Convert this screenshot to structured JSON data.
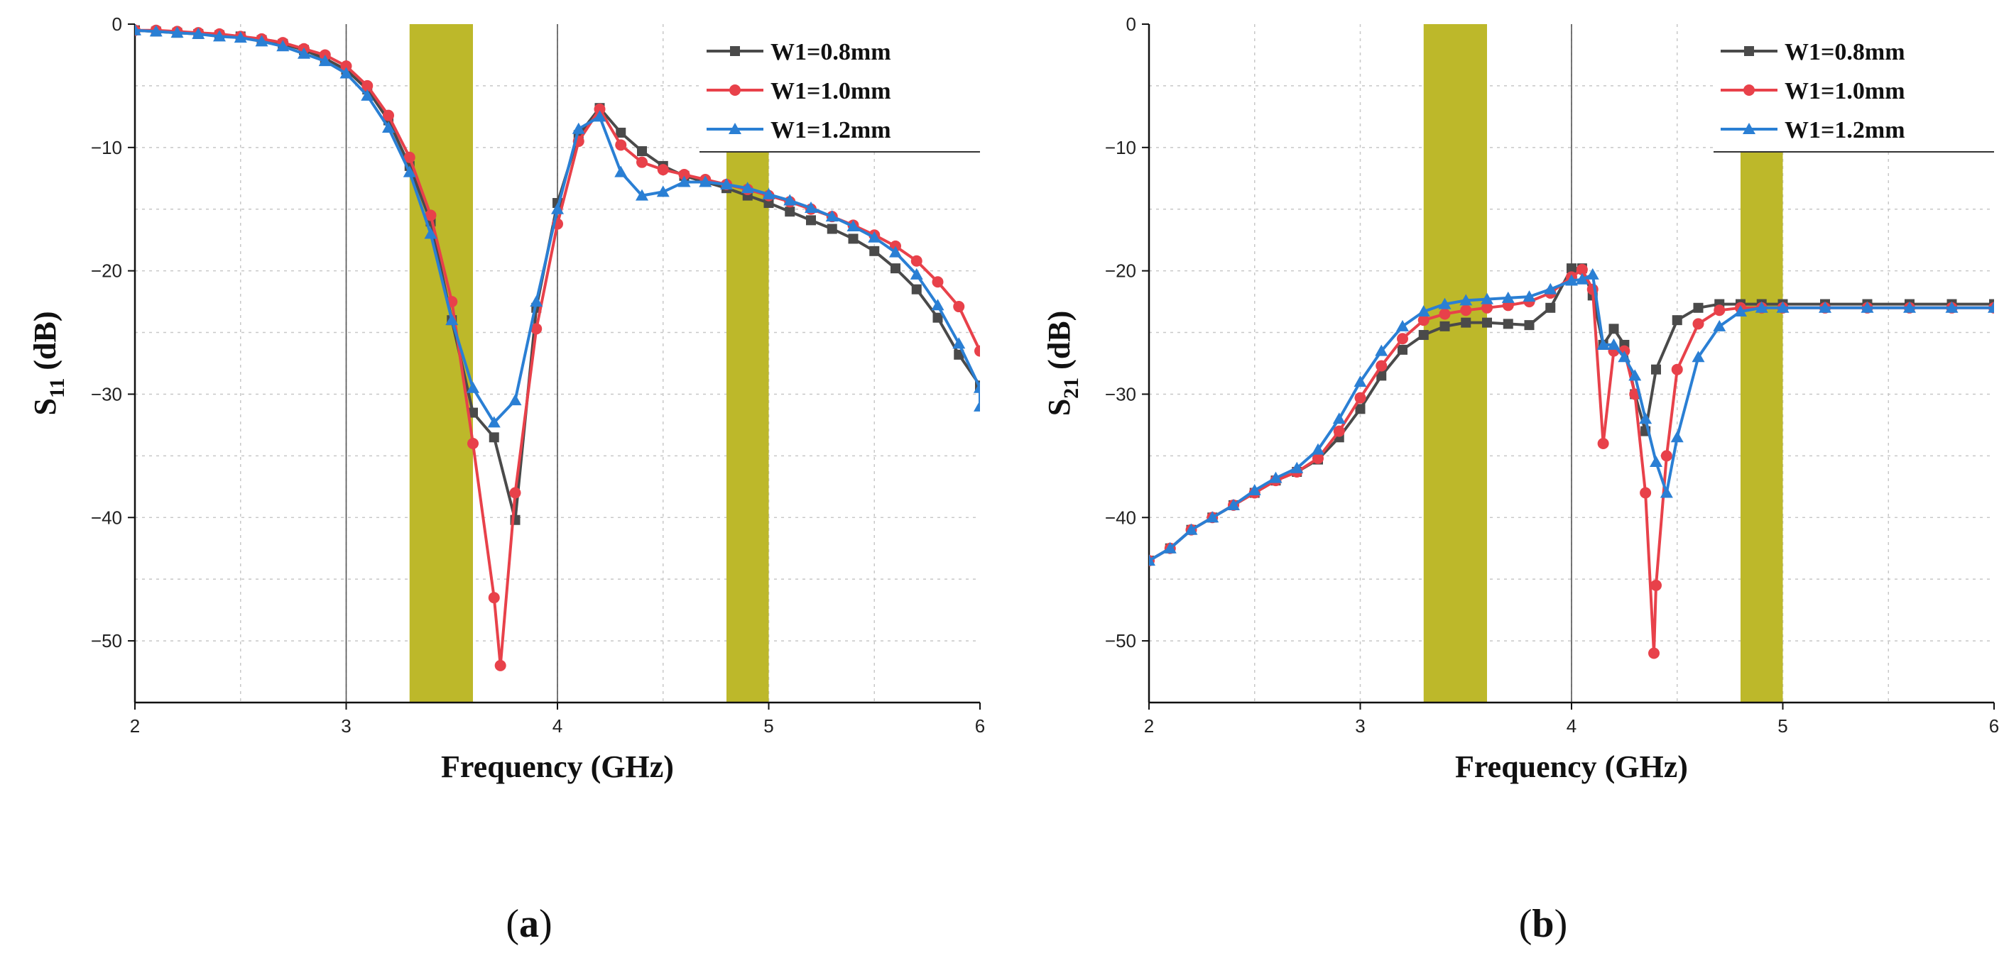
{
  "chart_data": [
    {
      "id": "a",
      "type": "line",
      "caption": "a",
      "xlabel": "Frequency (GHz)",
      "ylabel_main": "S",
      "ylabel_sub": "11",
      "ylabel_suffix": " (dB)",
      "xlim": [
        2,
        6
      ],
      "ylim": [
        -55,
        0
      ],
      "xticks": [
        2,
        3,
        4,
        5,
        6
      ],
      "yticks": [
        0,
        -10,
        -20,
        -30,
        -40,
        -50
      ],
      "ytick_labels": [
        "0",
        "−10",
        "−20",
        "−30",
        "−40",
        "−50"
      ],
      "grid": true,
      "legend_position": "top-right",
      "bands": [
        [
          3.3,
          3.6
        ],
        [
          4.8,
          5.0
        ]
      ],
      "marker_vlines": [
        3.0,
        4.0
      ],
      "band_color": "#bdb82a",
      "series": [
        {
          "name": "W1=0.8mm",
          "color": "#4a4a4a",
          "marker": "square",
          "points": [
            [
              2.0,
              -0.5
            ],
            [
              2.1,
              -0.6
            ],
            [
              2.2,
              -0.7
            ],
            [
              2.3,
              -0.8
            ],
            [
              2.4,
              -0.9
            ],
            [
              2.5,
              -1.0
            ],
            [
              2.6,
              -1.3
            ],
            [
              2.7,
              -1.6
            ],
            [
              2.8,
              -2.1
            ],
            [
              2.9,
              -2.8
            ],
            [
              3.0,
              -3.7
            ],
            [
              3.1,
              -5.3
            ],
            [
              3.2,
              -7.8
            ],
            [
              3.3,
              -11.5
            ],
            [
              3.4,
              -16.0
            ],
            [
              3.5,
              -24.0
            ],
            [
              3.6,
              -31.5
            ],
            [
              3.7,
              -33.5
            ],
            [
              3.8,
              -40.2
            ],
            [
              3.9,
              -23.0
            ],
            [
              4.0,
              -14.5
            ],
            [
              4.1,
              -9.0
            ],
            [
              4.2,
              -6.8
            ],
            [
              4.3,
              -8.8
            ],
            [
              4.4,
              -10.3
            ],
            [
              4.5,
              -11.5
            ],
            [
              4.6,
              -12.3
            ],
            [
              4.7,
              -12.8
            ],
            [
              4.8,
              -13.3
            ],
            [
              4.9,
              -13.9
            ],
            [
              5.0,
              -14.5
            ],
            [
              5.1,
              -15.2
            ],
            [
              5.2,
              -15.9
            ],
            [
              5.3,
              -16.6
            ],
            [
              5.4,
              -17.4
            ],
            [
              5.5,
              -18.4
            ],
            [
              5.6,
              -19.8
            ],
            [
              5.7,
              -21.5
            ],
            [
              5.8,
              -23.8
            ],
            [
              5.9,
              -26.8
            ],
            [
              6.0,
              -29.3
            ]
          ]
        },
        {
          "name": "W1=1.0mm",
          "color": "#e8414a",
          "marker": "circle",
          "points": [
            [
              2.0,
              -0.5
            ],
            [
              2.1,
              -0.5
            ],
            [
              2.2,
              -0.6
            ],
            [
              2.3,
              -0.7
            ],
            [
              2.4,
              -0.8
            ],
            [
              2.5,
              -1.0
            ],
            [
              2.6,
              -1.2
            ],
            [
              2.7,
              -1.5
            ],
            [
              2.8,
              -2.0
            ],
            [
              2.9,
              -2.5
            ],
            [
              3.0,
              -3.4
            ],
            [
              3.1,
              -5.0
            ],
            [
              3.2,
              -7.4
            ],
            [
              3.3,
              -10.8
            ],
            [
              3.4,
              -15.5
            ],
            [
              3.5,
              -22.5
            ],
            [
              3.6,
              -34.0
            ],
            [
              3.7,
              -46.5
            ],
            [
              3.73,
              -52.0
            ],
            [
              3.8,
              -38.0
            ],
            [
              3.9,
              -24.7
            ],
            [
              4.0,
              -16.2
            ],
            [
              4.1,
              -9.5
            ],
            [
              4.2,
              -6.9
            ],
            [
              4.3,
              -9.8
            ],
            [
              4.4,
              -11.2
            ],
            [
              4.5,
              -11.8
            ],
            [
              4.6,
              -12.2
            ],
            [
              4.7,
              -12.6
            ],
            [
              4.8,
              -13.0
            ],
            [
              4.9,
              -13.4
            ],
            [
              5.0,
              -13.9
            ],
            [
              5.1,
              -14.4
            ],
            [
              5.2,
              -15.0
            ],
            [
              5.3,
              -15.6
            ],
            [
              5.4,
              -16.3
            ],
            [
              5.5,
              -17.1
            ],
            [
              5.6,
              -18.0
            ],
            [
              5.7,
              -19.2
            ],
            [
              5.8,
              -20.9
            ],
            [
              5.9,
              -22.9
            ],
            [
              6.0,
              -26.5
            ]
          ]
        },
        {
          "name": "W1=1.2mm",
          "color": "#2a7fd4",
          "marker": "triangle",
          "points": [
            [
              2.0,
              -0.5
            ],
            [
              2.1,
              -0.6
            ],
            [
              2.2,
              -0.7
            ],
            [
              2.3,
              -0.8
            ],
            [
              2.4,
              -1.0
            ],
            [
              2.5,
              -1.1
            ],
            [
              2.6,
              -1.4
            ],
            [
              2.7,
              -1.8
            ],
            [
              2.8,
              -2.4
            ],
            [
              2.9,
              -3.0
            ],
            [
              3.0,
              -4.0
            ],
            [
              3.1,
              -5.8
            ],
            [
              3.2,
              -8.4
            ],
            [
              3.3,
              -12.0
            ],
            [
              3.4,
              -17.0
            ],
            [
              3.5,
              -24.0
            ],
            [
              3.6,
              -29.5
            ],
            [
              3.7,
              -32.3
            ],
            [
              3.8,
              -30.5
            ],
            [
              3.9,
              -22.5
            ],
            [
              4.0,
              -15.0
            ],
            [
              4.1,
              -8.5
            ],
            [
              4.2,
              -7.5
            ],
            [
              4.3,
              -12.0
            ],
            [
              4.4,
              -13.9
            ],
            [
              4.5,
              -13.6
            ],
            [
              4.6,
              -12.8
            ],
            [
              4.7,
              -12.8
            ],
            [
              4.8,
              -13.0
            ],
            [
              4.9,
              -13.3
            ],
            [
              5.0,
              -13.8
            ],
            [
              5.1,
              -14.3
            ],
            [
              5.2,
              -14.9
            ],
            [
              5.3,
              -15.6
            ],
            [
              5.4,
              -16.4
            ],
            [
              5.5,
              -17.3
            ],
            [
              5.6,
              -18.5
            ],
            [
              5.7,
              -20.3
            ],
            [
              5.8,
              -22.8
            ],
            [
              5.9,
              -25.9
            ],
            [
              6.0,
              -29.5
            ],
            [
              6.0,
              -31.0
            ]
          ]
        }
      ]
    },
    {
      "id": "b",
      "type": "line",
      "caption": "b",
      "xlabel": "Frequency (GHz)",
      "ylabel_main": "S",
      "ylabel_sub": "21",
      "ylabel_suffix": " (dB)",
      "xlim": [
        2,
        6
      ],
      "ylim": [
        -55,
        0
      ],
      "xticks": [
        2,
        3,
        4,
        5,
        6
      ],
      "yticks": [
        0,
        -10,
        -20,
        -30,
        -40,
        -50
      ],
      "ytick_labels": [
        "0",
        "−10",
        "−20",
        "−30",
        "−40",
        "−50"
      ],
      "grid": true,
      "legend_position": "top-right",
      "bands": [
        [
          3.3,
          3.6
        ],
        [
          4.8,
          5.0
        ]
      ],
      "marker_vlines": [
        4.0
      ],
      "band_color": "#bdb82a",
      "series": [
        {
          "name": "W1=0.8mm",
          "color": "#4a4a4a",
          "marker": "square",
          "points": [
            [
              2.0,
              -43.5
            ],
            [
              2.1,
              -42.5
            ],
            [
              2.2,
              -41.0
            ],
            [
              2.3,
              -40.0
            ],
            [
              2.4,
              -39.0
            ],
            [
              2.5,
              -38.0
            ],
            [
              2.6,
              -37.0
            ],
            [
              2.7,
              -36.3
            ],
            [
              2.8,
              -35.3
            ],
            [
              2.9,
              -33.5
            ],
            [
              3.0,
              -31.2
            ],
            [
              3.1,
              -28.5
            ],
            [
              3.2,
              -26.4
            ],
            [
              3.3,
              -25.2
            ],
            [
              3.4,
              -24.5
            ],
            [
              3.5,
              -24.2
            ],
            [
              3.6,
              -24.2
            ],
            [
              3.7,
              -24.3
            ],
            [
              3.8,
              -24.4
            ],
            [
              3.9,
              -23.0
            ],
            [
              4.0,
              -19.8
            ],
            [
              4.05,
              -19.8
            ],
            [
              4.1,
              -22.0
            ],
            [
              4.15,
              -26.0
            ],
            [
              4.2,
              -24.7
            ],
            [
              4.25,
              -26.0
            ],
            [
              4.3,
              -30.0
            ],
            [
              4.35,
              -33.0
            ],
            [
              4.4,
              -28.0
            ],
            [
              4.5,
              -24.0
            ],
            [
              4.6,
              -23.0
            ],
            [
              4.7,
              -22.7
            ],
            [
              4.8,
              -22.7
            ],
            [
              4.9,
              -22.7
            ],
            [
              5.0,
              -22.7
            ],
            [
              5.2,
              -22.7
            ],
            [
              5.4,
              -22.7
            ],
            [
              5.6,
              -22.7
            ],
            [
              5.8,
              -22.7
            ],
            [
              6.0,
              -22.7
            ]
          ]
        },
        {
          "name": "W1=1.0mm",
          "color": "#e8414a",
          "marker": "circle",
          "points": [
            [
              2.0,
              -43.5
            ],
            [
              2.1,
              -42.5
            ],
            [
              2.2,
              -41.0
            ],
            [
              2.3,
              -40.0
            ],
            [
              2.4,
              -39.0
            ],
            [
              2.5,
              -38.0
            ],
            [
              2.6,
              -37.0
            ],
            [
              2.7,
              -36.3
            ],
            [
              2.8,
              -35.2
            ],
            [
              2.9,
              -33.0
            ],
            [
              3.0,
              -30.3
            ],
            [
              3.1,
              -27.7
            ],
            [
              3.2,
              -25.5
            ],
            [
              3.3,
              -24.0
            ],
            [
              3.4,
              -23.5
            ],
            [
              3.5,
              -23.2
            ],
            [
              3.6,
              -23.0
            ],
            [
              3.7,
              -22.8
            ],
            [
              3.8,
              -22.5
            ],
            [
              3.9,
              -21.8
            ],
            [
              4.0,
              -20.5
            ],
            [
              4.05,
              -19.9
            ],
            [
              4.1,
              -21.5
            ],
            [
              4.15,
              -34.0
            ],
            [
              4.2,
              -26.5
            ],
            [
              4.25,
              -26.5
            ],
            [
              4.3,
              -30.0
            ],
            [
              4.35,
              -38.0
            ],
            [
              4.39,
              -51.0
            ],
            [
              4.4,
              -45.5
            ],
            [
              4.45,
              -35.0
            ],
            [
              4.5,
              -28.0
            ],
            [
              4.6,
              -24.3
            ],
            [
              4.7,
              -23.2
            ],
            [
              4.8,
              -23.0
            ],
            [
              4.9,
              -23.0
            ],
            [
              5.0,
              -23.0
            ],
            [
              5.2,
              -23.0
            ],
            [
              5.4,
              -23.0
            ],
            [
              5.6,
              -23.0
            ],
            [
              5.8,
              -23.0
            ],
            [
              6.0,
              -23.0
            ]
          ]
        },
        {
          "name": "W1=1.2mm",
          "color": "#2a7fd4",
          "marker": "triangle",
          "points": [
            [
              2.0,
              -43.5
            ],
            [
              2.1,
              -42.5
            ],
            [
              2.2,
              -41.0
            ],
            [
              2.3,
              -40.0
            ],
            [
              2.4,
              -39.0
            ],
            [
              2.5,
              -37.8
            ],
            [
              2.6,
              -36.8
            ],
            [
              2.7,
              -36.0
            ],
            [
              2.8,
              -34.5
            ],
            [
              2.9,
              -32.0
            ],
            [
              3.0,
              -29.0
            ],
            [
              3.1,
              -26.5
            ],
            [
              3.2,
              -24.5
            ],
            [
              3.3,
              -23.3
            ],
            [
              3.4,
              -22.7
            ],
            [
              3.5,
              -22.4
            ],
            [
              3.6,
              -22.3
            ],
            [
              3.7,
              -22.2
            ],
            [
              3.8,
              -22.1
            ],
            [
              3.9,
              -21.5
            ],
            [
              4.0,
              -20.8
            ],
            [
              4.05,
              -20.7
            ],
            [
              4.1,
              -20.3
            ],
            [
              4.15,
              -26.0
            ],
            [
              4.2,
              -26.0
            ],
            [
              4.25,
              -27.0
            ],
            [
              4.3,
              -28.5
            ],
            [
              4.35,
              -32.0
            ],
            [
              4.4,
              -35.5
            ],
            [
              4.45,
              -38.0
            ],
            [
              4.5,
              -33.5
            ],
            [
              4.6,
              -27.0
            ],
            [
              4.7,
              -24.5
            ],
            [
              4.8,
              -23.3
            ],
            [
              4.9,
              -23.0
            ],
            [
              5.0,
              -23.0
            ],
            [
              5.2,
              -23.0
            ],
            [
              5.4,
              -23.0
            ],
            [
              5.6,
              -23.0
            ],
            [
              5.8,
              -23.0
            ],
            [
              6.0,
              -23.0
            ]
          ]
        }
      ]
    }
  ]
}
